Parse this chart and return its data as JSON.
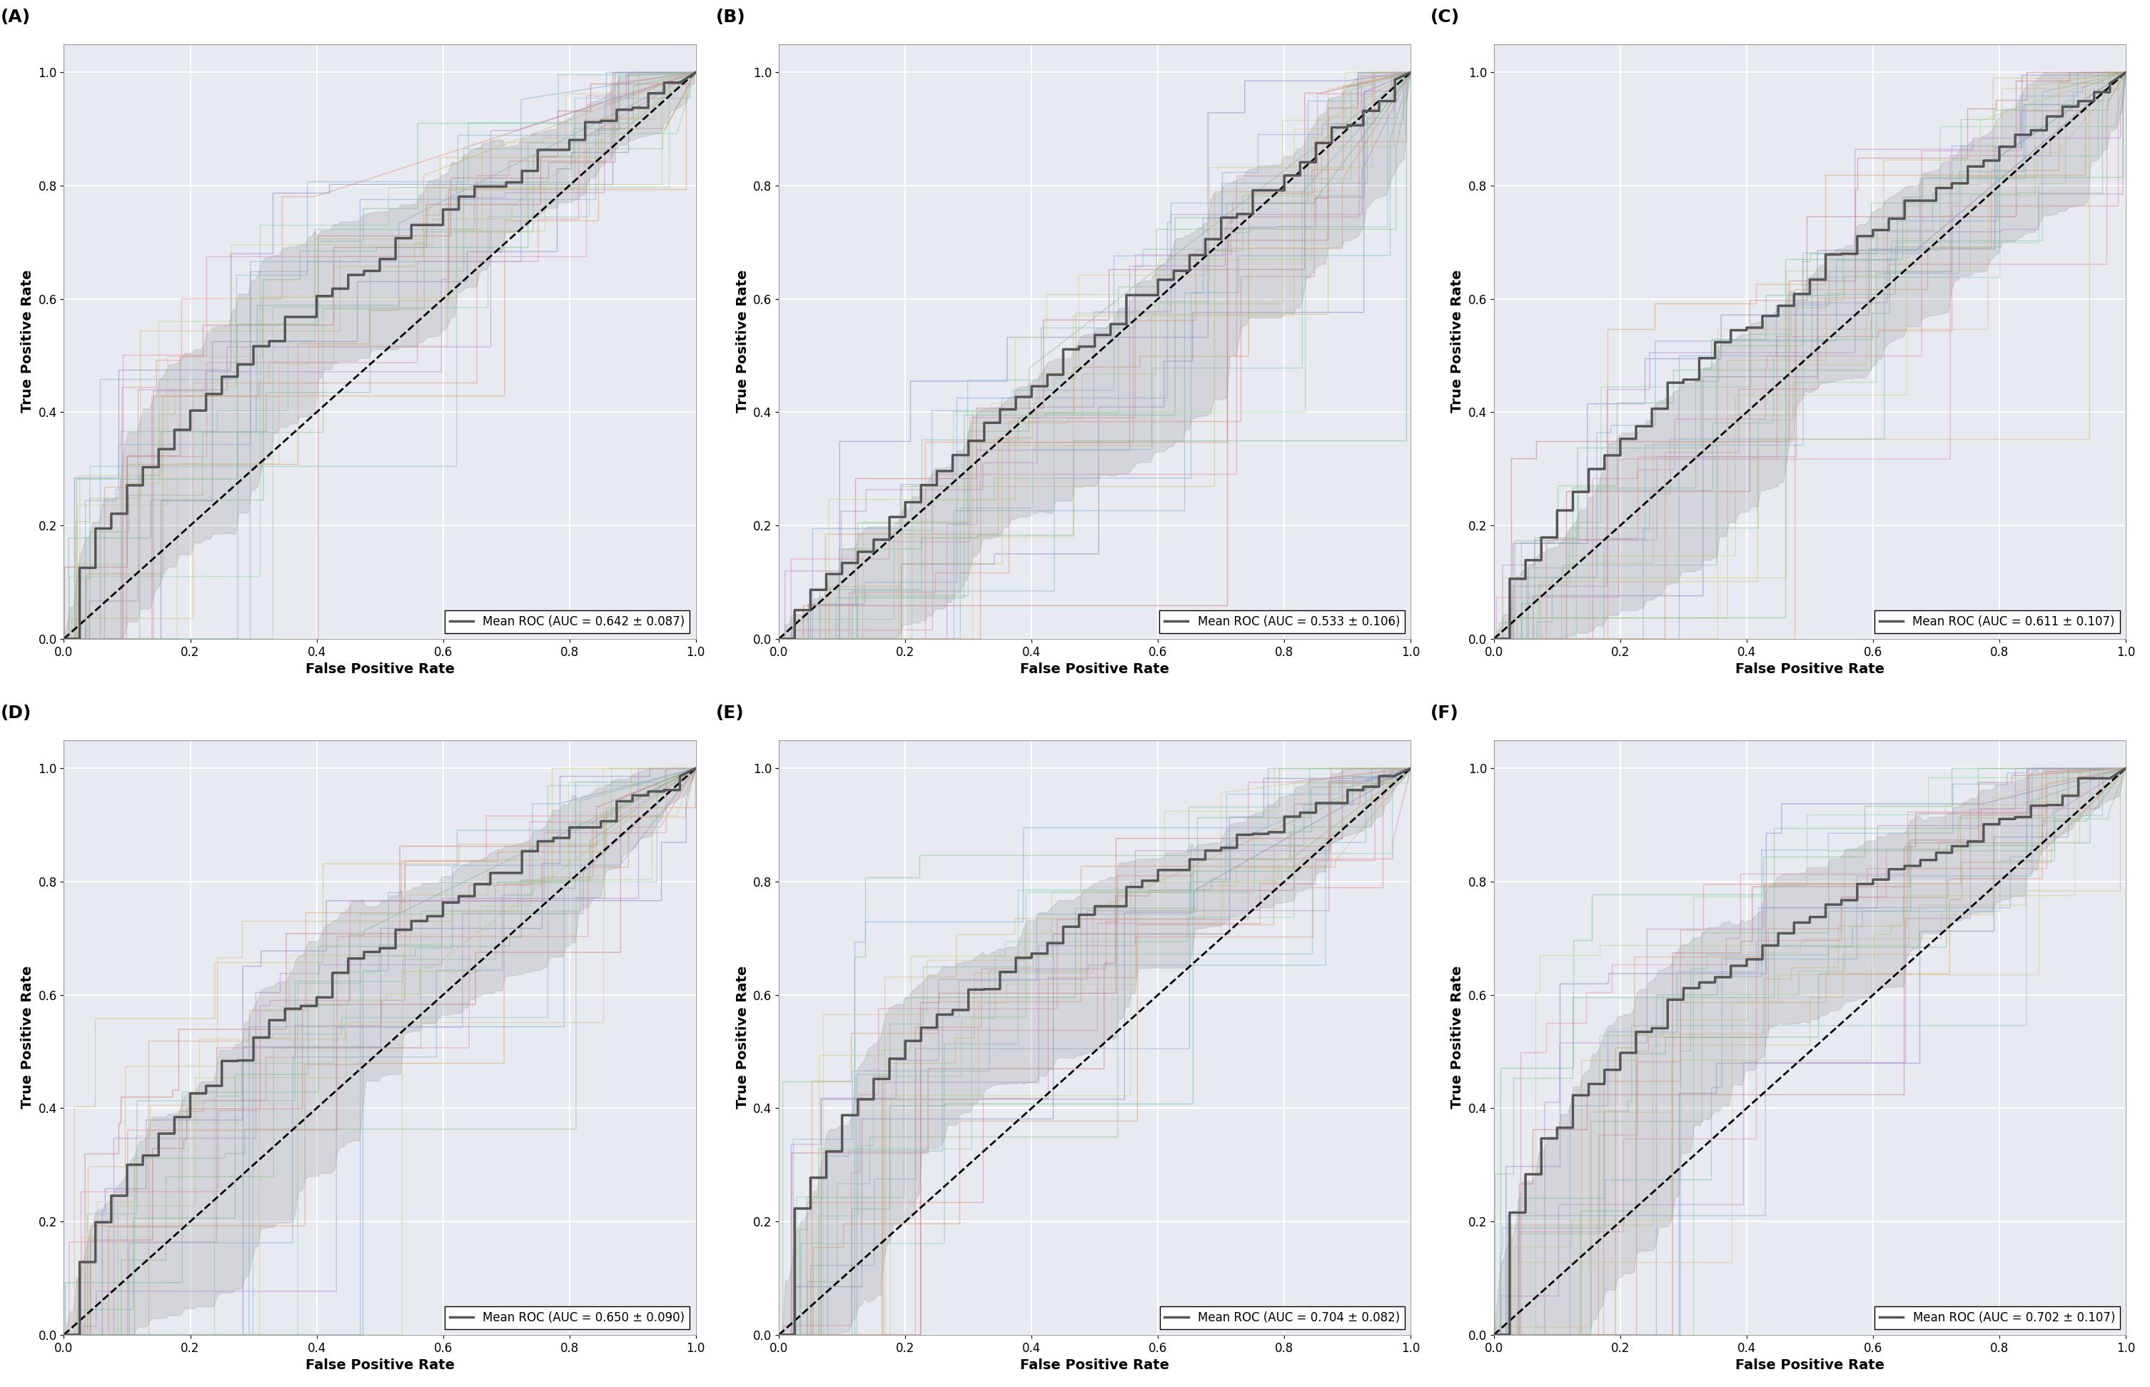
{
  "panels": [
    {
      "label": "A",
      "auc": 0.642,
      "std": 0.087
    },
    {
      "label": "B",
      "auc": 0.533,
      "std": 0.106
    },
    {
      "label": "C",
      "auc": 0.611,
      "std": 0.107
    },
    {
      "label": "D",
      "auc": 0.65,
      "std": 0.09
    },
    {
      "label": "E",
      "auc": 0.704,
      "std": 0.082
    },
    {
      "label": "F",
      "auc": 0.702,
      "std": 0.107
    }
  ],
  "n_folds": 30,
  "line_colors": [
    "#7ab8d9",
    "#e89080",
    "#88c888",
    "#d8c070",
    "#c088d8",
    "#80c8c0",
    "#e0a060",
    "#8888c8",
    "#d07878",
    "#70c888",
    "#c0d880",
    "#e888b8",
    "#80b0e0",
    "#e0c888",
    "#90d8a0"
  ],
  "mean_line_color": "#555555",
  "std_fill_color": "#999999",
  "std_fill_alpha": 0.25,
  "individual_alpha": 0.55,
  "individual_linewidth": 1.0,
  "mean_linewidth": 2.5,
  "background_color": "#e8eaf2",
  "grid_color": "#ffffff",
  "xlabel": "False Positive Rate",
  "ylabel": "True Positive Rate",
  "xlim": [
    0.0,
    1.0
  ],
  "ylim": [
    0.0,
    1.05
  ],
  "tick_values": [
    0.0,
    0.2,
    0.4,
    0.6,
    0.8,
    1.0
  ],
  "legend_fontsize": 12,
  "axis_label_fontsize": 14,
  "panel_label_fontsize": 18,
  "tick_fontsize": 12
}
